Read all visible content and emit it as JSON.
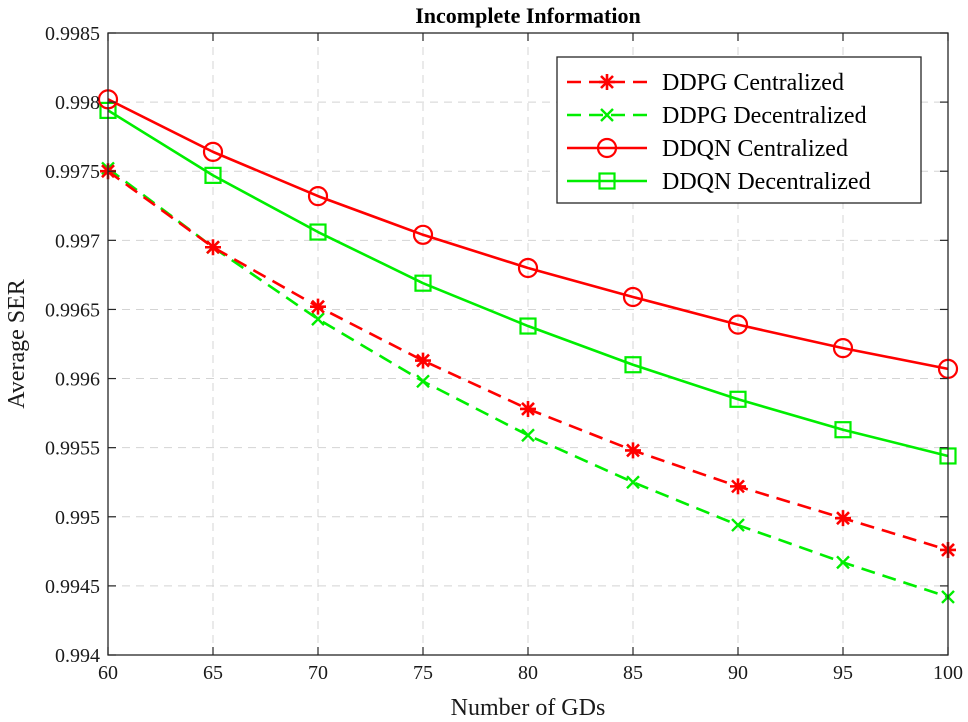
{
  "chart_data": {
    "type": "line",
    "title": "Incomplete Information",
    "xlabel": "Number of GDs",
    "ylabel": "Average SER",
    "xlim": [
      60,
      100
    ],
    "ylim": [
      0.994,
      0.9985
    ],
    "x_ticks": [
      "60",
      "65",
      "70",
      "75",
      "80",
      "85",
      "90",
      "95",
      "100"
    ],
    "y_ticks": [
      "0.994",
      "0.9945",
      "0.995",
      "0.9955",
      "0.996",
      "0.9965",
      "0.997",
      "0.9975",
      "0.998",
      "0.9985"
    ],
    "grid": true,
    "legend_position": "top-right",
    "x": [
      60,
      65,
      70,
      75,
      80,
      85,
      90,
      95,
      100
    ],
    "series": [
      {
        "name": "DDPG Centralized",
        "color": "#ff0000",
        "line_style": "dashed",
        "marker": "asterisk",
        "values": [
          0.9975,
          0.99695,
          0.99652,
          0.99613,
          0.99578,
          0.99548,
          0.99522,
          0.99499,
          0.99476
        ]
      },
      {
        "name": "DDPG Decentralized",
        "color": "#00ee00",
        "line_style": "dashed",
        "marker": "x",
        "values": [
          0.99752,
          0.99695,
          0.99643,
          0.99598,
          0.99559,
          0.99525,
          0.99494,
          0.99467,
          0.99442
        ]
      },
      {
        "name": "DDQN Centralized",
        "color": "#ff0000",
        "line_style": "solid",
        "marker": "circle",
        "values": [
          0.99802,
          0.99764,
          0.99732,
          0.99704,
          0.9968,
          0.99659,
          0.99639,
          0.99622,
          0.99607
        ]
      },
      {
        "name": "DDQN Decentralized",
        "color": "#00ee00",
        "line_style": "solid",
        "marker": "square",
        "values": [
          0.99794,
          0.99747,
          0.99706,
          0.99669,
          0.99638,
          0.9961,
          0.99585,
          0.99563,
          0.99544
        ]
      }
    ]
  }
}
